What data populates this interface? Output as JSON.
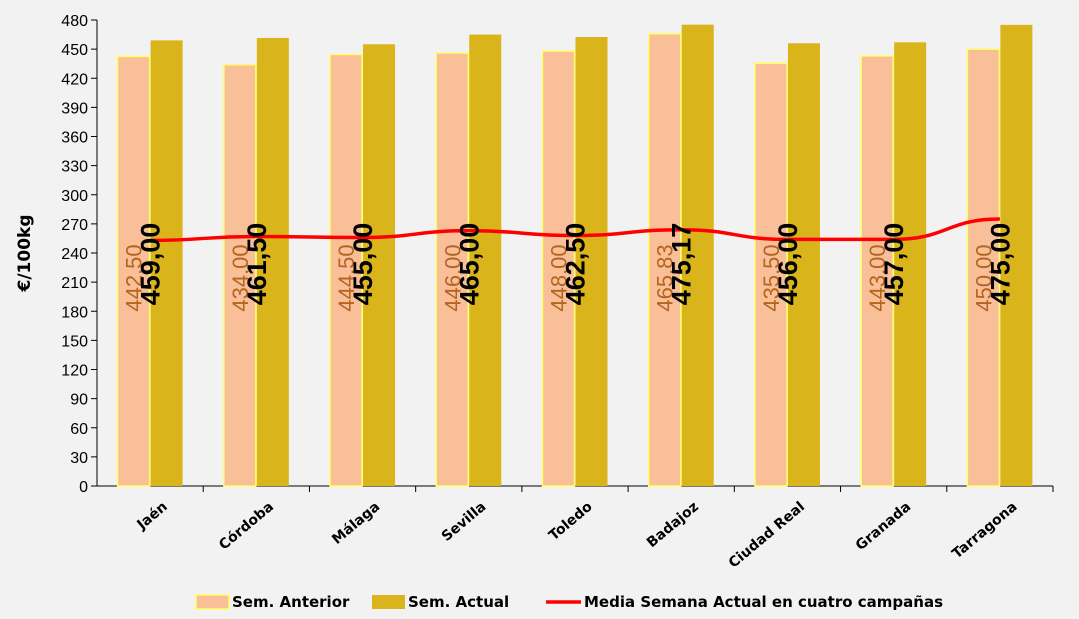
{
  "chart_data": {
    "type": "bar",
    "ylabel": "€/100kg",
    "xlabel": "",
    "ylim": [
      0,
      480
    ],
    "ytick_step": 30,
    "grid": false,
    "legend_position": "bottom",
    "categories": [
      "Jaén",
      "Córdoba",
      "Málaga",
      "Sevilla",
      "Toledo",
      "Badajoz",
      "Ciudad Real",
      "Granada",
      "Tarragona"
    ],
    "series": [
      {
        "name": "Sem. Anterior",
        "kind": "bar",
        "color": "#f8bf98",
        "values": [
          442.5,
          434.0,
          444.5,
          446.0,
          448.0,
          465.83,
          435.5,
          443.0,
          450.0
        ],
        "labels": [
          "442,50",
          "434,00",
          "444,50",
          "446,00",
          "448,00",
          "465,83",
          "435,50",
          "443,00",
          "450,00"
        ]
      },
      {
        "name": "Sem. Actual",
        "kind": "bar",
        "color": "#d9b41a",
        "values": [
          459.0,
          461.5,
          455.0,
          465.0,
          462.5,
          475.17,
          456.0,
          457.0,
          475.0
        ],
        "labels": [
          "459,00",
          "461,50",
          "455,00",
          "465,00",
          "462,50",
          "475,17",
          "456,00",
          "457,00",
          "475,00"
        ]
      },
      {
        "name": "Media Semana Actual en cuatro campañas",
        "kind": "line",
        "color": "#ff0000",
        "values": [
          253,
          257,
          256,
          263,
          258,
          264,
          254,
          254,
          275
        ]
      }
    ],
    "yticks": [
      "0",
      "30",
      "60",
      "90",
      "120",
      "150",
      "180",
      "210",
      "240",
      "270",
      "300",
      "330",
      "360",
      "390",
      "420",
      "450",
      "480"
    ]
  }
}
